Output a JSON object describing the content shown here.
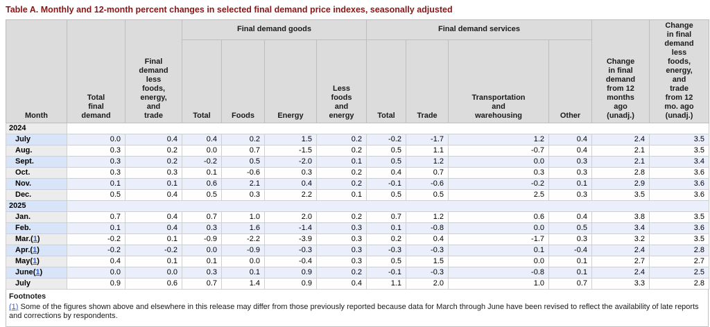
{
  "title": "Table A. Monthly and 12-month percent changes in selected final demand price indexes, seasonally adjusted",
  "colors": {
    "title_text": "#8b1515",
    "header_bg": "#dcdcdc",
    "row_plain_bg": "#fefefe",
    "row_plain_month_bg": "#ececec",
    "row_alt_bg": "#eaeffb",
    "row_alt_month_bg": "#d8e5f8",
    "border": "#cfcfcf",
    "link": "#3b5fc0"
  },
  "table": {
    "groups": [
      {
        "label": "Final demand goods"
      },
      {
        "label": "Final demand services"
      }
    ],
    "columns": [
      {
        "label": "Month"
      },
      {
        "label": "Total\nfinal\ndemand"
      },
      {
        "label": "Final\ndemand\nless\nfoods,\nenergy,\nand\ntrade"
      },
      {
        "label": "Total"
      },
      {
        "label": "Foods"
      },
      {
        "label": "Energy"
      },
      {
        "label": "Less\nfoods\nand\nenergy"
      },
      {
        "label": "Total"
      },
      {
        "label": "Trade"
      },
      {
        "label": "Transportation\nand\nwarehousing"
      },
      {
        "label": "Other"
      },
      {
        "label": "Change\nin final\ndemand\nfrom 12\nmonths\nago\n(unadj.)"
      },
      {
        "label": "Change\nin final\ndemand\nless\nfoods,\nenergy,\nand\ntrade\nfrom 12\nmo. ago\n(unadj.)"
      }
    ],
    "sections": [
      {
        "year": "2024",
        "rows": [
          {
            "month": "July",
            "footnote_ref": "",
            "values": [
              "0.0",
              "0.4",
              "0.4",
              "0.2",
              "1.5",
              "0.2",
              "-0.2",
              "-1.7",
              "1.2",
              "0.4",
              "2.4",
              "3.5"
            ]
          },
          {
            "month": "Aug.",
            "footnote_ref": "",
            "values": [
              "0.3",
              "0.2",
              "0.0",
              "0.7",
              "-1.5",
              "0.2",
              "0.5",
              "1.1",
              "-0.7",
              "0.4",
              "2.1",
              "3.5"
            ]
          },
          {
            "month": "Sept.",
            "footnote_ref": "",
            "values": [
              "0.3",
              "0.2",
              "-0.2",
              "0.5",
              "-2.0",
              "0.1",
              "0.5",
              "1.2",
              "0.0",
              "0.3",
              "2.1",
              "3.4"
            ]
          },
          {
            "month": "Oct.",
            "footnote_ref": "",
            "values": [
              "0.3",
              "0.3",
              "0.1",
              "-0.6",
              "0.3",
              "0.2",
              "0.4",
              "0.7",
              "0.3",
              "0.3",
              "2.8",
              "3.6"
            ]
          },
          {
            "month": "Nov.",
            "footnote_ref": "",
            "values": [
              "0.1",
              "0.1",
              "0.6",
              "2.1",
              "0.4",
              "0.2",
              "-0.1",
              "-0.6",
              "-0.2",
              "0.1",
              "2.9",
              "3.6"
            ]
          },
          {
            "month": "Dec.",
            "footnote_ref": "",
            "values": [
              "0.5",
              "0.4",
              "0.5",
              "0.3",
              "2.2",
              "0.1",
              "0.5",
              "0.5",
              "2.5",
              "0.3",
              "3.5",
              "3.6"
            ]
          }
        ]
      },
      {
        "year": "2025",
        "rows": [
          {
            "month": "Jan.",
            "footnote_ref": "",
            "values": [
              "0.7",
              "0.4",
              "0.7",
              "1.0",
              "2.0",
              "0.2",
              "0.7",
              "1.2",
              "0.6",
              "0.4",
              "3.8",
              "3.5"
            ]
          },
          {
            "month": "Feb.",
            "footnote_ref": "",
            "values": [
              "0.1",
              "0.4",
              "0.3",
              "1.6",
              "-1.4",
              "0.3",
              "0.1",
              "-0.8",
              "0.0",
              "0.5",
              "3.4",
              "3.6"
            ]
          },
          {
            "month": "Mar.",
            "footnote_ref": "1",
            "values": [
              "-0.2",
              "0.1",
              "-0.9",
              "-2.2",
              "-3.9",
              "0.3",
              "0.2",
              "0.4",
              "-1.7",
              "0.3",
              "3.2",
              "3.5"
            ]
          },
          {
            "month": "Apr.",
            "footnote_ref": "1",
            "values": [
              "-0.2",
              "-0.2",
              "0.0",
              "-0.9",
              "-0.3",
              "0.3",
              "-0.3",
              "-0.3",
              "0.1",
              "-0.4",
              "2.4",
              "2.8"
            ]
          },
          {
            "month": "May",
            "footnote_ref": "1",
            "values": [
              "0.4",
              "0.1",
              "0.1",
              "0.0",
              "-0.4",
              "0.3",
              "0.5",
              "1.5",
              "0.0",
              "0.1",
              "2.7",
              "2.7"
            ]
          },
          {
            "month": "June",
            "footnote_ref": "1",
            "values": [
              "0.0",
              "0.0",
              "0.3",
              "0.1",
              "0.9",
              "0.2",
              "-0.1",
              "-0.3",
              "-0.8",
              "0.1",
              "2.4",
              "2.5"
            ]
          },
          {
            "month": "July",
            "footnote_ref": "",
            "values": [
              "0.9",
              "0.6",
              "0.7",
              "1.4",
              "0.9",
              "0.4",
              "1.1",
              "2.0",
              "1.0",
              "0.7",
              "3.3",
              "2.8"
            ]
          }
        ]
      }
    ]
  },
  "footnotes": {
    "heading": "Footnotes",
    "items": [
      {
        "ref": "(1)",
        "text": "Some of the figures shown above and elsewhere in this release may differ from those previously reported because data for March through June have been revised to reflect the availability of late reports and corrections by respondents."
      }
    ]
  }
}
